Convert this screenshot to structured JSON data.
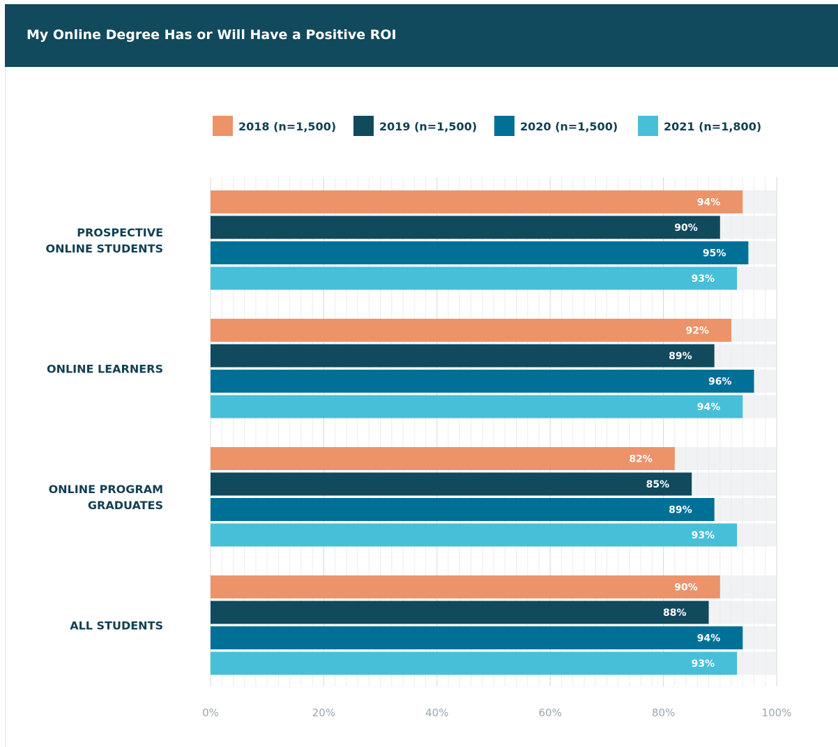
{
  "chart_data": {
    "type": "bar",
    "orientation": "horizontal",
    "title": "My Online Degree Has or Will Have a Positive ROI",
    "categories": [
      [
        "PROSPECTIVE",
        "ONLINE STUDENTS"
      ],
      [
        "ONLINE LEARNERS"
      ],
      [
        "ONLINE PROGRAM",
        "GRADUATES"
      ],
      [
        "ALL STUDENTS"
      ]
    ],
    "series": [
      {
        "name": "2018 (n=1,500)",
        "color": "#ec936a",
        "values": [
          94,
          92,
          82,
          90
        ]
      },
      {
        "name": "2019 (n=1,500)",
        "color": "#11495d",
        "values": [
          90,
          89,
          85,
          88
        ]
      },
      {
        "name": "2020 (n=1,500)",
        "color": "#007096",
        "values": [
          95,
          96,
          89,
          94
        ]
      },
      {
        "name": "2021 (n=1,800)",
        "color": "#47bfd9",
        "values": [
          93,
          94,
          93,
          93
        ]
      }
    ],
    "value_suffix": "%",
    "xlim": [
      0,
      100
    ],
    "xticks": [
      0,
      20,
      40,
      60,
      80,
      100
    ],
    "xtick_labels": [
      "0%",
      "20%",
      "40%",
      "60%",
      "80%",
      "100%"
    ],
    "grid": true,
    "legend_position": "top"
  }
}
